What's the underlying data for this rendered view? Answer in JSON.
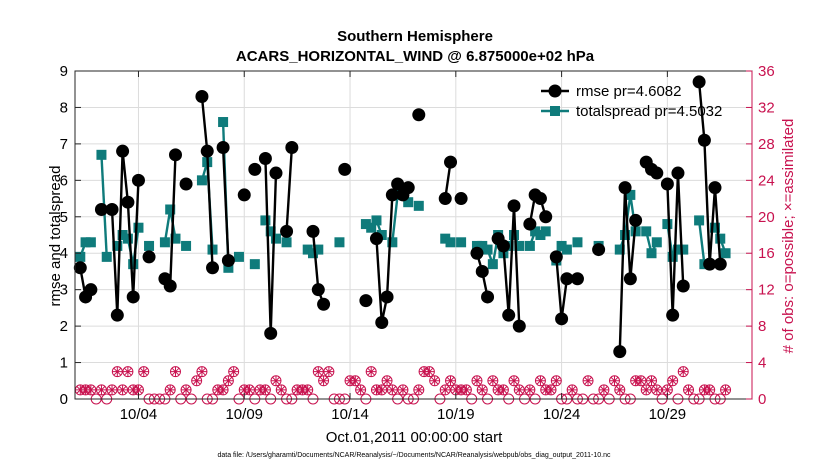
{
  "chart_data": {
    "type": "line",
    "title": "Southern Hemisphere",
    "subtitle": "ACARS_HORIZONTAL_WIND @ 6.875000e+02 hPa",
    "xlabel": "Oct.01,2011 00:00:00 start",
    "ylabel": "rmse and totalspread",
    "ylabel_right": "# of obs: o=possible; ×=assimilated",
    "footnote": "data file: /Users/gharamti/Documents/NCAR/Reanalysis/~/Documents/NCAR/Reanalysis/webpub/obs_diag_output_2011-10.nc",
    "xlim": [
      1,
      33
    ],
    "ylim": [
      0,
      9
    ],
    "ylim_right": [
      0,
      36
    ],
    "x_ticks": [
      4,
      9,
      14,
      19,
      24,
      29
    ],
    "x_tick_labels": [
      "10/04",
      "10/09",
      "10/14",
      "10/19",
      "10/24",
      "10/29"
    ],
    "y_ticks": [
      0,
      1,
      2,
      3,
      4,
      5,
      6,
      7,
      8,
      9
    ],
    "y_ticks_right": [
      0,
      4,
      8,
      12,
      16,
      20,
      24,
      28,
      32,
      36
    ],
    "legend": [
      "rmse pr=4.6082",
      "totalspread pr=4.5032"
    ],
    "colors": {
      "rmse": "#000000",
      "spread": "#0f7b7b",
      "obs": "#c8124f"
    },
    "series": [
      {
        "name": "rmse",
        "values": [
          3.6,
          2.8,
          3.0,
          null,
          5.2,
          null,
          5.2,
          2.3,
          6.8,
          5.4,
          2.8,
          6.0,
          null,
          3.9,
          null,
          null,
          3.3,
          3.1,
          6.7,
          null,
          5.9,
          null,
          null,
          8.3,
          6.8,
          3.6,
          null,
          6.9,
          3.8,
          null,
          null,
          5.6,
          null,
          6.3,
          null,
          6.6,
          1.8,
          6.2,
          null,
          4.6,
          6.9,
          null,
          null,
          null,
          4.6,
          3.0,
          2.6,
          null,
          null,
          null,
          6.3,
          null,
          null,
          null,
          2.7,
          null,
          4.4,
          2.1,
          2.8,
          5.6,
          5.9,
          5.6,
          5.8,
          null,
          7.8,
          null,
          null,
          null,
          null,
          5.5,
          6.5,
          null,
          5.5,
          null,
          null,
          4.0,
          3.5,
          2.8,
          null,
          4.4,
          4.2,
          2.3,
          5.3,
          2.0,
          null,
          4.8,
          5.6,
          5.5,
          5.0,
          null,
          3.9,
          2.2,
          3.3,
          null,
          3.3,
          null,
          null,
          null,
          4.1,
          null,
          null,
          null,
          1.3,
          5.8,
          3.3,
          4.9,
          null,
          6.5,
          6.3,
          6.2,
          null,
          5.9,
          2.3,
          6.2,
          3.1,
          null,
          null,
          8.7,
          7.1,
          3.7,
          5.8,
          3.7
        ]
      },
      {
        "name": "totalspread",
        "values": [
          3.9,
          4.3,
          4.3,
          null,
          6.7,
          3.9,
          null,
          4.2,
          4.5,
          4.4,
          3.7,
          4.7,
          null,
          4.2,
          null,
          null,
          4.3,
          5.2,
          4.4,
          null,
          4.2,
          null,
          null,
          6.0,
          6.5,
          4.1,
          null,
          7.6,
          3.6,
          null,
          3.9,
          null,
          null,
          3.7,
          null,
          4.9,
          4.6,
          4.4,
          null,
          4.3,
          null,
          null,
          null,
          4.1,
          4.0,
          4.1,
          null,
          null,
          null,
          4.3,
          null,
          null,
          null,
          null,
          4.8,
          4.7,
          4.9,
          4.5,
          null,
          4.3,
          5.6,
          5.7,
          5.4,
          null,
          5.3,
          null,
          null,
          null,
          null,
          4.4,
          4.3,
          null,
          4.3,
          null,
          null,
          4.2,
          4.2,
          4.1,
          3.7,
          4.5,
          4.0,
          4.2,
          4.5,
          4.2,
          null,
          4.2,
          4.6,
          4.5,
          4.6,
          null,
          3.8,
          4.2,
          4.1,
          null,
          4.3,
          null,
          null,
          null,
          4.2,
          null,
          null,
          null,
          4.1,
          4.5,
          5.6,
          4.6,
          null,
          4.6,
          4.0,
          4.3,
          null,
          4.8,
          3.9,
          4.1,
          4.1,
          null,
          null,
          4.9,
          3.7,
          null,
          4.7,
          4.4,
          4.0
        ]
      },
      {
        "name": "obs possible (right axis)",
        "values": [
          1,
          1,
          1,
          0,
          1,
          0,
          1,
          3,
          1,
          3,
          1,
          1,
          3,
          0,
          0,
          0,
          0,
          1,
          3,
          0,
          1,
          0,
          2,
          3,
          0,
          0,
          1,
          1,
          2,
          3,
          0,
          1,
          1,
          0,
          1,
          1,
          0,
          2,
          1,
          0,
          0,
          1,
          1,
          1,
          0,
          3,
          2,
          3,
          0,
          0,
          0,
          2,
          2,
          1,
          0,
          3,
          1,
          1,
          2,
          1,
          0,
          1,
          0,
          0,
          1,
          3,
          3,
          2,
          0,
          1,
          2,
          1,
          1,
          1,
          0,
          2,
          1,
          0,
          2,
          1,
          1,
          0,
          2,
          1,
          0,
          1,
          0,
          2,
          1,
          1,
          2,
          0,
          0,
          1,
          0,
          0,
          2,
          0,
          0,
          1,
          0,
          2,
          1,
          0,
          0,
          2,
          2,
          1,
          2,
          1,
          0,
          1,
          2,
          0,
          3,
          1,
          0,
          0,
          1,
          1,
          0,
          0,
          1
        ]
      }
    ]
  }
}
